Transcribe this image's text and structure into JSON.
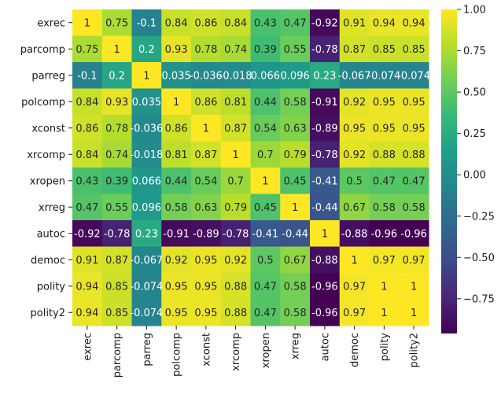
{
  "chart_data": {
    "type": "heatmap",
    "title": "",
    "xlabel": "",
    "ylabel": "",
    "x_labels": [
      "exrec",
      "parcomp",
      "parreg",
      "polcomp",
      "xconst",
      "xrcomp",
      "xropen",
      "xrreg",
      "autoc",
      "democ",
      "polity",
      "polity2"
    ],
    "y_labels": [
      "exrec",
      "parcomp",
      "parreg",
      "polcomp",
      "xconst",
      "xrcomp",
      "xropen",
      "xrreg",
      "autoc",
      "democ",
      "polity",
      "polity2"
    ],
    "values": [
      [
        1,
        0.75,
        -0.1,
        0.84,
        0.86,
        0.84,
        0.43,
        0.47,
        -0.92,
        0.91,
        0.94,
        0.94
      ],
      [
        0.75,
        1,
        0.2,
        0.93,
        0.78,
        0.74,
        0.39,
        0.55,
        -0.78,
        0.87,
        0.85,
        0.85
      ],
      [
        -0.1,
        0.2,
        1,
        0.035,
        -0.036,
        -0.018,
        0.066,
        0.096,
        0.23,
        -0.067,
        -0.074,
        -0.074
      ],
      [
        0.84,
        0.93,
        0.035,
        1,
        0.86,
        0.81,
        0.44,
        0.58,
        -0.91,
        0.92,
        0.95,
        0.95
      ],
      [
        0.86,
        0.78,
        -0.036,
        0.86,
        1,
        0.87,
        0.54,
        0.63,
        -0.89,
        0.95,
        0.95,
        0.95
      ],
      [
        0.84,
        0.74,
        -0.018,
        0.81,
        0.87,
        1,
        0.7,
        0.79,
        -0.78,
        0.92,
        0.88,
        0.88
      ],
      [
        0.43,
        0.39,
        0.066,
        0.44,
        0.54,
        0.7,
        1,
        0.45,
        -0.41,
        0.5,
        0.47,
        0.47
      ],
      [
        0.47,
        0.55,
        0.096,
        0.58,
        0.63,
        0.79,
        0.45,
        1,
        -0.44,
        0.67,
        0.58,
        0.58
      ],
      [
        -0.92,
        -0.78,
        0.23,
        -0.91,
        -0.89,
        -0.78,
        -0.41,
        -0.44,
        1,
        -0.88,
        -0.96,
        -0.96
      ],
      [
        0.91,
        0.87,
        -0.067,
        0.92,
        0.95,
        0.92,
        0.5,
        0.67,
        -0.88,
        1,
        0.97,
        0.97
      ],
      [
        0.94,
        0.85,
        -0.074,
        0.95,
        0.95,
        0.88,
        0.47,
        0.58,
        -0.96,
        0.97,
        1,
        1
      ],
      [
        0.94,
        0.85,
        -0.074,
        0.95,
        0.95,
        0.88,
        0.47,
        0.58,
        -0.96,
        0.97,
        1,
        1
      ]
    ],
    "cell_labels": [
      [
        "1",
        "0.75",
        "-0.1",
        "0.84",
        "0.86",
        "0.84",
        "0.43",
        "0.47",
        "-0.92",
        "0.91",
        "0.94",
        "0.94"
      ],
      [
        "0.75",
        "1",
        "0.2",
        "0.93",
        "0.78",
        "0.74",
        "0.39",
        "0.55",
        "-0.78",
        "0.87",
        "0.85",
        "0.85"
      ],
      [
        "-0.1",
        "0.2",
        "1",
        "0.035",
        "-0.036",
        "-0.018",
        "0.066",
        "0.096",
        "0.23",
        "-0.067",
        "-0.074",
        "-0.074"
      ],
      [
        "0.84",
        "0.93",
        "0.035",
        "1",
        "0.86",
        "0.81",
        "0.44",
        "0.58",
        "-0.91",
        "0.92",
        "0.95",
        "0.95"
      ],
      [
        "0.86",
        "0.78",
        "-0.036",
        "0.86",
        "1",
        "0.87",
        "0.54",
        "0.63",
        "-0.89",
        "0.95",
        "0.95",
        "0.95"
      ],
      [
        "0.84",
        "0.74",
        "-0.018",
        "0.81",
        "0.87",
        "1",
        "0.7",
        "0.79",
        "-0.78",
        "0.92",
        "0.88",
        "0.88"
      ],
      [
        "0.43",
        "0.39",
        "0.066",
        "0.44",
        "0.54",
        "0.7",
        "1",
        "0.45",
        "-0.41",
        "0.5",
        "0.47",
        "0.47"
      ],
      [
        "0.47",
        "0.55",
        "0.096",
        "0.58",
        "0.63",
        "0.79",
        "0.45",
        "1",
        "-0.44",
        "0.67",
        "0.58",
        "0.58"
      ],
      [
        "-0.92",
        "-0.78",
        "0.23",
        "-0.91",
        "-0.89",
        "-0.78",
        "-0.41",
        "-0.44",
        "1",
        "-0.88",
        "-0.96",
        "-0.96"
      ],
      [
        "0.91",
        "0.87",
        "-0.067",
        "0.92",
        "0.95",
        "0.92",
        "0.5",
        "0.67",
        "-0.88",
        "1",
        "0.97",
        "0.97"
      ],
      [
        "0.94",
        "0.85",
        "-0.074",
        "0.95",
        "0.95",
        "0.88",
        "0.47",
        "0.58",
        "-0.96",
        "0.97",
        "1",
        "1"
      ],
      [
        "0.94",
        "0.85",
        "-0.074",
        "0.95",
        "0.95",
        "0.88",
        "0.47",
        "0.58",
        "-0.96",
        "0.97",
        "1",
        "1"
      ]
    ],
    "colormap": "viridis",
    "vmin": -0.96,
    "vmax": 1,
    "colorbar": {
      "ticks": [
        1.0,
        0.75,
        0.5,
        0.25,
        0.0,
        -0.25,
        -0.5,
        -0.75
      ],
      "tick_labels": [
        "1.00",
        "0.75",
        "0.50",
        "0.25",
        "0.00",
        "−0.25",
        "−0.50",
        "−0.75"
      ]
    },
    "grid": false,
    "legend": "colorbar-right"
  },
  "colors": {
    "viridis_stops": [
      "#440154",
      "#482878",
      "#3e4989",
      "#31688e",
      "#26828e",
      "#1f9e89",
      "#35b779",
      "#6ece58",
      "#b5de2b",
      "#fde725"
    ],
    "light_text": "#ffffff",
    "dark_text": "#262626"
  }
}
